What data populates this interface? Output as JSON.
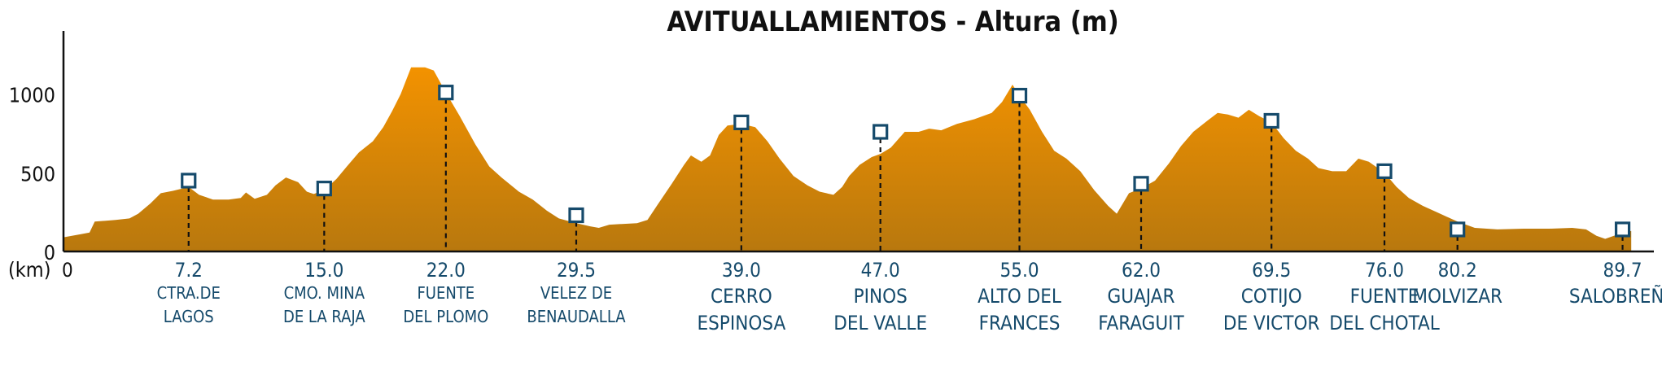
{
  "chart_data": {
    "type": "area",
    "title": "AVITUALLAMIENTOS - Altura (m)",
    "xlabel": "(km)",
    "ylabel": "",
    "x_origin_label": "0",
    "xlim": [
      0,
      91.5
    ],
    "ylim": [
      0,
      1400
    ],
    "y_ticks": [
      0,
      500,
      1000
    ],
    "y_tick_labels": [
      "0",
      "500",
      "1000"
    ],
    "fill_top_color": "#f39200",
    "fill_bottom_color": "#b8780e",
    "marker_color": "#154a6b",
    "label_color": "#154a6b",
    "profile": [
      [
        0,
        90
      ],
      [
        1,
        110
      ],
      [
        1.5,
        120
      ],
      [
        1.8,
        190
      ],
      [
        3,
        200
      ],
      [
        3.8,
        210
      ],
      [
        4.3,
        240
      ],
      [
        5.0,
        305
      ],
      [
        5.6,
        370
      ],
      [
        6.3,
        385
      ],
      [
        7.2,
        410
      ],
      [
        7.8,
        360
      ],
      [
        8.6,
        330
      ],
      [
        9.5,
        330
      ],
      [
        10.2,
        340
      ],
      [
        10.5,
        375
      ],
      [
        11.0,
        335
      ],
      [
        11.7,
        360
      ],
      [
        12.2,
        420
      ],
      [
        12.8,
        470
      ],
      [
        13.5,
        440
      ],
      [
        14.0,
        380
      ],
      [
        14.4,
        365
      ],
      [
        15.0,
        390
      ],
      [
        15.7,
        460
      ],
      [
        16.3,
        540
      ],
      [
        17.0,
        630
      ],
      [
        17.8,
        700
      ],
      [
        18.4,
        790
      ],
      [
        18.9,
        890
      ],
      [
        19.4,
        1000
      ],
      [
        20.0,
        1170
      ],
      [
        20.8,
        1170
      ],
      [
        21.3,
        1150
      ],
      [
        22.0,
        1010
      ],
      [
        22.8,
        860
      ],
      [
        23.7,
        680
      ],
      [
        24.5,
        540
      ],
      [
        25.2,
        470
      ],
      [
        26.2,
        380
      ],
      [
        27.0,
        330
      ],
      [
        27.8,
        260
      ],
      [
        28.5,
        210
      ],
      [
        29.5,
        180
      ],
      [
        30.3,
        160
      ],
      [
        30.8,
        150
      ],
      [
        31.4,
        170
      ],
      [
        33.0,
        180
      ],
      [
        33.6,
        200
      ],
      [
        34.2,
        300
      ],
      [
        35.0,
        430
      ],
      [
        35.7,
        550
      ],
      [
        36.1,
        610
      ],
      [
        36.7,
        570
      ],
      [
        37.2,
        610
      ],
      [
        37.7,
        740
      ],
      [
        38.2,
        800
      ],
      [
        39.0,
        810
      ],
      [
        39.8,
        790
      ],
      [
        40.5,
        700
      ],
      [
        41.2,
        590
      ],
      [
        42.0,
        480
      ],
      [
        42.8,
        420
      ],
      [
        43.5,
        380
      ],
      [
        44.3,
        360
      ],
      [
        44.8,
        410
      ],
      [
        45.2,
        480
      ],
      [
        45.8,
        550
      ],
      [
        46.5,
        600
      ],
      [
        47.0,
        620
      ],
      [
        47.6,
        660
      ],
      [
        48.4,
        760
      ],
      [
        49.2,
        760
      ],
      [
        49.8,
        780
      ],
      [
        50.5,
        770
      ],
      [
        51.4,
        810
      ],
      [
        52.4,
        840
      ],
      [
        53.4,
        880
      ],
      [
        54.0,
        950
      ],
      [
        54.6,
        1060
      ],
      [
        55.0,
        990
      ],
      [
        55.6,
        900
      ],
      [
        56.3,
        760
      ],
      [
        57.0,
        640
      ],
      [
        57.7,
        590
      ],
      [
        58.5,
        510
      ],
      [
        59.3,
        390
      ],
      [
        60.1,
        290
      ],
      [
        60.6,
        240
      ],
      [
        61.3,
        370
      ],
      [
        62.0,
        400
      ],
      [
        62.8,
        450
      ],
      [
        63.6,
        560
      ],
      [
        64.3,
        670
      ],
      [
        65.0,
        760
      ],
      [
        65.8,
        830
      ],
      [
        66.4,
        880
      ],
      [
        67.0,
        870
      ],
      [
        67.6,
        850
      ],
      [
        68.2,
        900
      ],
      [
        68.8,
        860
      ],
      [
        69.5,
        820
      ],
      [
        70.2,
        720
      ],
      [
        70.9,
        640
      ],
      [
        71.6,
        590
      ],
      [
        72.2,
        530
      ],
      [
        73.0,
        510
      ],
      [
        73.8,
        510
      ],
      [
        74.5,
        590
      ],
      [
        75.1,
        570
      ],
      [
        76.0,
        500
      ],
      [
        76.7,
        410
      ],
      [
        77.4,
        340
      ],
      [
        78.2,
        290
      ],
      [
        79.0,
        250
      ],
      [
        80.2,
        190
      ],
      [
        81.2,
        150
      ],
      [
        82.5,
        140
      ],
      [
        84.0,
        145
      ],
      [
        85.5,
        145
      ],
      [
        86.8,
        150
      ],
      [
        87.6,
        140
      ],
      [
        88.2,
        100
      ],
      [
        88.7,
        80
      ],
      [
        89.2,
        100
      ],
      [
        89.7,
        120
      ],
      [
        90.2,
        130
      ]
    ],
    "aid_stations": [
      {
        "km": 7.2,
        "km_label": "7.2",
        "elev": 450,
        "name_lines": [
          "CTRA.DE",
          "LAGOS"
        ],
        "size": "small"
      },
      {
        "km": 15.0,
        "km_label": "15.0",
        "elev": 400,
        "name_lines": [
          "CMO. MINA",
          "DE LA RAJA"
        ],
        "size": "small"
      },
      {
        "km": 22.0,
        "km_label": "22.0",
        "elev": 1010,
        "name_lines": [
          "FUENTE",
          "DEL PLOMO"
        ],
        "size": "small"
      },
      {
        "km": 29.5,
        "km_label": "29.5",
        "elev": 230,
        "name_lines": [
          "VELEZ DE",
          "BENAUDALLA"
        ],
        "size": "small"
      },
      {
        "km": 39.0,
        "km_label": "39.0",
        "elev": 820,
        "name_lines": [
          "CERRO",
          "ESPINOSA"
        ],
        "size": "big"
      },
      {
        "km": 47.0,
        "km_label": "47.0",
        "elev": 760,
        "name_lines": [
          "PINOS",
          "DEL VALLE"
        ],
        "size": "big"
      },
      {
        "km": 55.0,
        "km_label": "55.0",
        "elev": 990,
        "name_lines": [
          "ALTO DEL",
          "FRANCES"
        ],
        "size": "big"
      },
      {
        "km": 62.0,
        "km_label": "62.0",
        "elev": 430,
        "name_lines": [
          "GUAJAR",
          "FARAGUIT"
        ],
        "size": "big"
      },
      {
        "km": 69.5,
        "km_label": "69.5",
        "elev": 830,
        "name_lines": [
          "COTIJO",
          "DE VICTOR"
        ],
        "size": "big"
      },
      {
        "km": 76.0,
        "km_label": "76.0",
        "elev": 510,
        "name_lines": [
          "FUENTE",
          "DEL CHOTAL"
        ],
        "size": "big"
      },
      {
        "km": 80.2,
        "km_label": "80.2",
        "elev": 140,
        "name_lines": [
          "MOLVIZAR"
        ],
        "size": "big"
      },
      {
        "km": 89.7,
        "km_label": "89.7",
        "elev": 140,
        "name_lines": [
          "SALOBREÑA"
        ],
        "size": "big"
      }
    ]
  }
}
